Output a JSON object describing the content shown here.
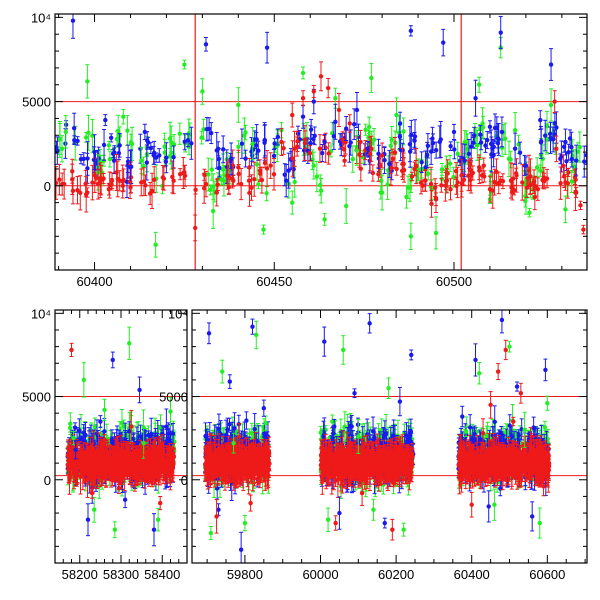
{
  "colors": {
    "green": "#22ee22",
    "blue": "#1a1aee",
    "red": "#ee1a1a",
    "axis": "#000000",
    "refline": "#ee1a1a"
  },
  "chart_data": [
    {
      "type": "scatter",
      "panel": "top",
      "xlim": [
        60389,
        60537
      ],
      "ylim": [
        -5000,
        10200
      ],
      "xticks": [
        60400,
        60450,
        60500
      ],
      "xtick_labels": [
        "60400",
        "60450",
        "60500"
      ],
      "yticks": [
        0,
        5000,
        10000
      ],
      "ytick_labels": [
        "0",
        "5000",
        "10⁴"
      ],
      "hlines": [
        5000,
        0
      ],
      "vlines": [
        60428,
        60502
      ],
      "grid": false,
      "legend": "none",
      "series": [
        {
          "color": "green",
          "points": [
            [
              60392,
              3200
            ],
            [
              60398,
              6200
            ],
            [
              60401,
              800
            ],
            [
              60404,
              2400
            ],
            [
              60408,
              4100
            ],
            [
              60413,
              1500
            ],
            [
              60417,
              -3500
            ],
            [
              60421,
              2800
            ],
            [
              60425,
              7200
            ],
            [
              60430,
              5600
            ],
            [
              60433,
              -1500
            ],
            [
              60436,
              300
            ],
            [
              60440,
              4800
            ],
            [
              60444,
              2500
            ],
            [
              60447,
              -2600
            ],
            [
              60452,
              3300
            ],
            [
              60455,
              -1000
            ],
            [
              60458,
              6700
            ],
            [
              60461,
              1200
            ],
            [
              60464,
              -2000
            ],
            [
              60467,
              5200
            ],
            [
              60470,
              -1200
            ],
            [
              60473,
              2100
            ],
            [
              60477,
              6400
            ],
            [
              60480,
              -400
            ],
            [
              60484,
              4200
            ],
            [
              60488,
              -3000
            ],
            [
              60491,
              1000
            ],
            [
              60495,
              -2800
            ],
            [
              60498,
              300
            ],
            [
              60503,
              2600
            ],
            [
              60507,
              6000
            ],
            [
              60510,
              -800
            ],
            [
              60513,
              8200
            ],
            [
              60517,
              3300
            ],
            [
              60521,
              -1600
            ],
            [
              60524,
              900
            ],
            [
              60527,
              4800
            ],
            [
              60531,
              -1400
            ],
            [
              60535,
              2300
            ]
          ]
        },
        {
          "color": "blue",
          "points": [
            [
              60394,
              9800
            ],
            [
              60397,
              1600
            ],
            [
              60400,
              2000
            ],
            [
              60403,
              3900
            ],
            [
              60407,
              2400
            ],
            [
              60410,
              1100
            ],
            [
              60414,
              3200
            ],
            [
              60418,
              1800
            ],
            [
              60422,
              1700
            ],
            [
              60426,
              2700
            ],
            [
              60431,
              8400
            ],
            [
              60434,
              2100
            ],
            [
              60438,
              1600
            ],
            [
              60441,
              2500
            ],
            [
              60445,
              2400
            ],
            [
              60448,
              8200
            ],
            [
              60451,
              2900
            ],
            [
              60454,
              900
            ],
            [
              60458,
              4100
            ],
            [
              60461,
              5000
            ],
            [
              60464,
              2600
            ],
            [
              60467,
              3800
            ],
            [
              60470,
              3400
            ],
            [
              60473,
              4500
            ],
            [
              60476,
              2200
            ],
            [
              60479,
              1900
            ],
            [
              60482,
              1300
            ],
            [
              60485,
              3700
            ],
            [
              60488,
              9200
            ],
            [
              60491,
              1400
            ],
            [
              60494,
              2800
            ],
            [
              60497,
              8500
            ],
            [
              60500,
              3200
            ],
            [
              60503,
              1500
            ],
            [
              60506,
              5200
            ],
            [
              60510,
              3500
            ],
            [
              60513,
              9100
            ],
            [
              60517,
              2200
            ],
            [
              60520,
              1200
            ],
            [
              60524,
              3900
            ],
            [
              60527,
              7200
            ],
            [
              60531,
              2600
            ],
            [
              60534,
              1500
            ]
          ]
        },
        {
          "color": "red",
          "points": [
            [
              60391,
              100
            ],
            [
              60394,
              -300
            ],
            [
              60398,
              -400
            ],
            [
              60401,
              100
            ],
            [
              60404,
              -200
            ],
            [
              60407,
              300
            ],
            [
              60410,
              -100
            ],
            [
              60413,
              200
            ],
            [
              60416,
              -300
            ],
            [
              60419,
              500
            ],
            [
              60422,
              300
            ],
            [
              60425,
              800
            ],
            [
              60428,
              -2500
            ],
            [
              60431,
              100
            ],
            [
              60434,
              -400
            ],
            [
              60437,
              600
            ],
            [
              60440,
              1100
            ],
            [
              60443,
              300
            ],
            [
              60446,
              900
            ],
            [
              60449,
              1200
            ],
            [
              60452,
              2600
            ],
            [
              60455,
              4200
            ],
            [
              60458,
              5200
            ],
            [
              60461,
              5600
            ],
            [
              60463,
              6500
            ],
            [
              60465,
              5800
            ],
            [
              60468,
              4500
            ],
            [
              60471,
              3700
            ],
            [
              60474,
              2600
            ],
            [
              60477,
              2200
            ],
            [
              60480,
              1800
            ],
            [
              60483,
              1600
            ],
            [
              60486,
              1300
            ],
            [
              60489,
              1000
            ],
            [
              60492,
              300
            ],
            [
              60495,
              -800
            ],
            [
              60498,
              300
            ],
            [
              60501,
              200
            ],
            [
              60504,
              600
            ],
            [
              60507,
              1100
            ],
            [
              60510,
              -200
            ],
            [
              60513,
              300
            ],
            [
              60516,
              -100
            ],
            [
              60519,
              200
            ],
            [
              60522,
              100
            ],
            [
              60525,
              500
            ],
            [
              60528,
              5000
            ],
            [
              60531,
              200
            ],
            [
              60534,
              -400
            ],
            [
              60536,
              -2600
            ]
          ]
        }
      ]
    },
    {
      "type": "scatter",
      "panel": "bottom",
      "ylim": [
        -5000,
        10200
      ],
      "segments": [
        {
          "xlim": [
            58140,
            58460
          ],
          "xticks": [
            58200,
            58300,
            58400
          ],
          "xtick_labels": [
            "58200",
            "58300",
            "58400"
          ]
        },
        {
          "xlim": [
            59660,
            60705
          ],
          "xticks": [
            59800,
            60000,
            60200,
            60400,
            60600
          ],
          "xtick_labels": [
            "59800",
            "60000",
            "60200",
            "60400",
            "60600"
          ]
        }
      ],
      "yticks": [
        0,
        5000,
        10000
      ],
      "ytick_labels": [
        "0",
        "5000",
        "10⁴"
      ],
      "hlines": [
        5000,
        250
      ],
      "grid": false,
      "legend": "none",
      "data_ranges": [
        [
          58170,
          58430
        ],
        [
          59695,
          59865
        ],
        [
          60000,
          60245
        ],
        [
          60365,
          60605
        ]
      ],
      "series": [
        {
          "color": "green",
          "points": [
            [
              58185,
              2500
            ],
            [
              58210,
              6000
            ],
            [
              58235,
              -1800
            ],
            [
              58260,
              4200
            ],
            [
              58285,
              -3000
            ],
            [
              58320,
              8200
            ],
            [
              58355,
              2200
            ],
            [
              58390,
              -2400
            ],
            [
              58420,
              4100
            ],
            [
              59710,
              -3200
            ],
            [
              59740,
              6500
            ],
            [
              59770,
              2200
            ],
            [
              59800,
              -2600
            ],
            [
              59830,
              8700
            ],
            [
              59855,
              3400
            ],
            [
              60020,
              -2400
            ],
            [
              60060,
              7800
            ],
            [
              60100,
              2600
            ],
            [
              60140,
              -1800
            ],
            [
              60180,
              5500
            ],
            [
              60220,
              -3000
            ],
            [
              60385,
              2900
            ],
            [
              60420,
              6400
            ],
            [
              60460,
              -1500
            ],
            [
              60500,
              8000
            ],
            [
              60540,
              3000
            ],
            [
              60580,
              -2600
            ],
            [
              60600,
              4600
            ]
          ]
        },
        {
          "color": "blue",
          "points": [
            [
              58190,
              1800
            ],
            [
              58220,
              -2400
            ],
            [
              58250,
              3500
            ],
            [
              58280,
              7200
            ],
            [
              58310,
              -1200
            ],
            [
              58345,
              5400
            ],
            [
              58380,
              -3000
            ],
            [
              58410,
              3200
            ],
            [
              59705,
              8800
            ],
            [
              59730,
              -1800
            ],
            [
              59760,
              5900
            ],
            [
              59790,
              -4200
            ],
            [
              59820,
              9200
            ],
            [
              59850,
              4300
            ],
            [
              60010,
              8300
            ],
            [
              60050,
              -2000
            ],
            [
              60090,
              5200
            ],
            [
              60130,
              9400
            ],
            [
              60170,
              -2600
            ],
            [
              60210,
              4700
            ],
            [
              60240,
              7500
            ],
            [
              60375,
              3800
            ],
            [
              60410,
              7200
            ],
            [
              60445,
              -1600
            ],
            [
              60480,
              9600
            ],
            [
              60520,
              5600
            ],
            [
              60560,
              -2200
            ],
            [
              60595,
              6600
            ]
          ]
        },
        {
          "color": "red",
          "points": [
            [
              58180,
              7800
            ],
            [
              58205,
              1200
            ],
            [
              58230,
              -800
            ],
            [
              58260,
              2400
            ],
            [
              58295,
              -500
            ],
            [
              58325,
              3200
            ],
            [
              58360,
              1500
            ],
            [
              58395,
              -1400
            ],
            [
              58425,
              900
            ],
            [
              59700,
              1500
            ],
            [
              59725,
              -2200
            ],
            [
              59755,
              900
            ],
            [
              59785,
              2600
            ],
            [
              59815,
              -1400
            ],
            [
              59845,
              1600
            ],
            [
              60005,
              600
            ],
            [
              60040,
              -2600
            ],
            [
              60075,
              1900
            ],
            [
              60110,
              -800
            ],
            [
              60150,
              2300
            ],
            [
              60190,
              -3000
            ],
            [
              60230,
              1400
            ],
            [
              60370,
              500
            ],
            [
              60400,
              -1500
            ],
            [
              60430,
              2800
            ],
            [
              60450,
              4500
            ],
            [
              60470,
              6500
            ],
            [
              60490,
              7800
            ],
            [
              60510,
              3500
            ],
            [
              60530,
              5200
            ],
            [
              60560,
              1000
            ],
            [
              60590,
              -400
            ]
          ]
        }
      ]
    }
  ]
}
